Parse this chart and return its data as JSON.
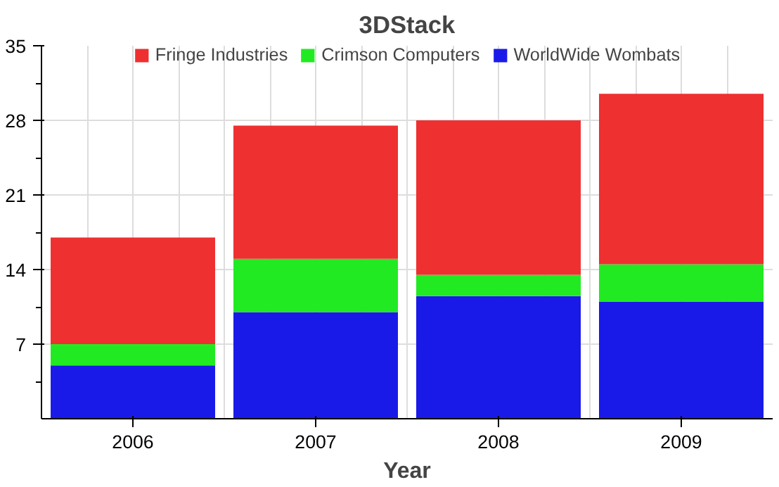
{
  "chart_data": {
    "type": "bar",
    "stacked": true,
    "title": "3DStack",
    "xlabel": "Year",
    "categories": [
      "2006",
      "2007",
      "2008",
      "2009"
    ],
    "series": [
      {
        "name": "WorldWide Wombats",
        "color": "#1a1ae8",
        "values": [
          5,
          10,
          11.5,
          11
        ]
      },
      {
        "name": "Crimson Computers",
        "color": "#22ea22",
        "values": [
          2,
          5,
          2,
          3.5
        ]
      },
      {
        "name": "Fringe Industries",
        "color": "#ee3030",
        "values": [
          10,
          12.5,
          14.5,
          16
        ]
      }
    ],
    "ylim": [
      0,
      35
    ],
    "yticks": [
      7,
      14,
      21,
      28,
      35
    ],
    "grid": true,
    "legend": "top"
  }
}
